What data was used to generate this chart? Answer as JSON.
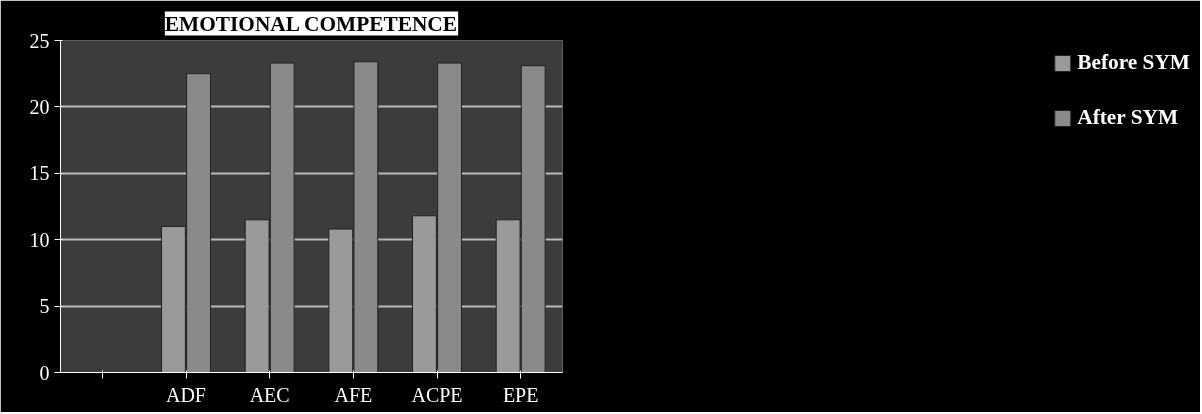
{
  "chart_data": {
    "type": "bar",
    "title": "EMOTIONAL COMPETENCE",
    "categories": [
      null,
      "ADF",
      "AEC",
      "AFE",
      "ACPE",
      "EPE"
    ],
    "series": [
      {
        "name": "Before SYM",
        "color": "#9a9a9a",
        "values": [
          null,
          11.0,
          11.5,
          10.8,
          11.8,
          11.5
        ]
      },
      {
        "name": "After SYM",
        "color": "#8a8a8a",
        "values": [
          null,
          22.5,
          23.3,
          23.4,
          23.3,
          23.1
        ]
      }
    ],
    "ylim": [
      0,
      25
    ],
    "yticks": [
      0,
      5,
      10,
      15,
      20,
      25
    ],
    "grid": "y",
    "legend": "right"
  }
}
